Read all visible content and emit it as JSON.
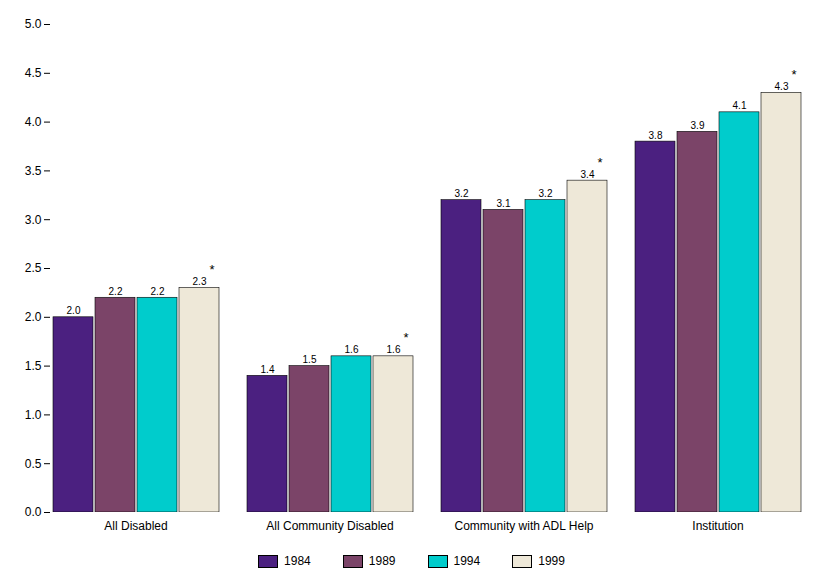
{
  "chart_data": {
    "type": "bar",
    "categories": [
      "All Disabled",
      "All Community Disabled",
      "Community with ADL Help",
      "Institution"
    ],
    "series": [
      {
        "name": "1984",
        "color": "#4B2080",
        "values": [
          2.0,
          1.4,
          3.2,
          3.8
        ],
        "value_labels": [
          "2.0",
          "1.4",
          "3.2",
          "3.8"
        ]
      },
      {
        "name": "1989",
        "color": "#7B4468",
        "values": [
          2.2,
          1.5,
          3.1,
          3.9
        ],
        "value_labels": [
          "2.2",
          "1.5",
          "3.1",
          "3.9"
        ]
      },
      {
        "name": "1994",
        "color": "#00CCCC",
        "values": [
          2.2,
          1.6,
          3.2,
          4.1
        ],
        "value_labels": [
          "2.2",
          "1.6",
          "3.2",
          "4.1"
        ]
      },
      {
        "name": "1999",
        "color": "#EEE8D8",
        "values": [
          2.3,
          1.6,
          3.4,
          4.3
        ],
        "value_labels": [
          "2.3",
          "1.6",
          "3.4",
          "4.3"
        ],
        "annotations": [
          "*",
          "*",
          "*",
          "*"
        ]
      }
    ],
    "ylim": [
      0.0,
      5.0
    ],
    "yticks": [
      {
        "value": 0.0,
        "label": "0.0"
      },
      0.5,
      {
        "value": 1.0,
        "label": "1.0"
      },
      1.5,
      {
        "value": 2.0,
        "label": "2.0"
      },
      2.5,
      {
        "value": 3.0,
        "label": "3.0"
      },
      3.5,
      {
        "value": 4.0,
        "label": "4.0"
      },
      4.5,
      {
        "value": 5.0,
        "label": "5.0"
      }
    ],
    "data_labels": true,
    "legend": "bottom",
    "grid": false
  }
}
